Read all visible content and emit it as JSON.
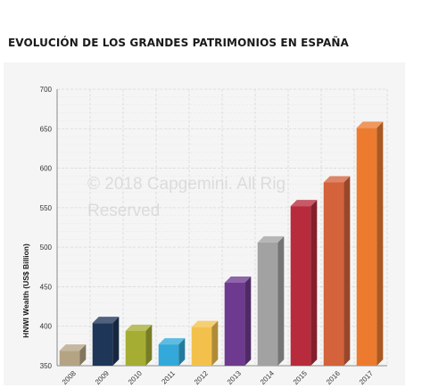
{
  "page": {
    "title": "EVOLUCIÓN DE LOS GRANDES PATRIMONIOS EN ESPAÑA"
  },
  "watermark": {
    "line1": "© 2018 Capgemini. All Rig",
    "line2": "Reserved"
  },
  "chart_data": {
    "type": "bar",
    "categories": [
      "2008",
      "2009",
      "2010",
      "2011",
      "2012",
      "2013",
      "2014",
      "2015",
      "2016",
      "2017"
    ],
    "values": [
      369,
      404,
      394,
      377,
      399,
      455,
      506,
      552,
      582,
      651
    ],
    "colors": [
      "#b4a484",
      "#1e3658",
      "#a6ad33",
      "#32a9d8",
      "#f3c14b",
      "#6e3a8f",
      "#a2a2a2",
      "#b82b3c",
      "#d4623a",
      "#ec7b2f"
    ],
    "title": "",
    "xlabel": "",
    "ylabel": "HNWI Wealth (US$ Billion)",
    "ylim": [
      350,
      700
    ],
    "yticks": [
      350,
      400,
      450,
      500,
      550,
      600,
      650,
      700
    ],
    "grid": true,
    "legend": "none",
    "style": "3d-bars"
  }
}
